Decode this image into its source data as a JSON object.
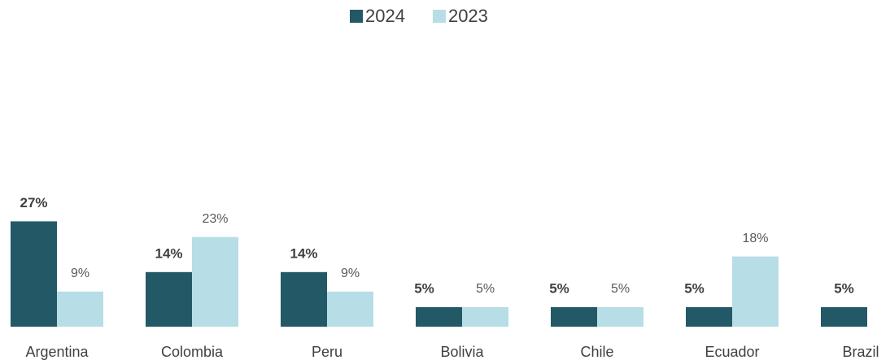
{
  "chart_data": {
    "type": "bar",
    "categories": [
      "Argentina",
      "Colombia",
      "Peru",
      "Bolivia",
      "Chile",
      "Ecuador",
      "Brazil"
    ],
    "series": [
      {
        "name": "2024",
        "color": "#235967",
        "values": [
          27,
          14,
          14,
          5,
          5,
          5,
          5
        ],
        "value_labels": [
          "27%",
          "14%",
          "14%",
          "5%",
          "5%",
          "5%",
          "5%"
        ]
      },
      {
        "name": "2023",
        "color": "#b7dde6",
        "values": [
          9,
          23,
          9,
          5,
          5,
          18,
          null
        ],
        "value_labels": [
          "9%",
          "23%",
          "9%",
          "5%",
          "5%",
          "18%",
          null
        ]
      }
    ],
    "legend": "top"
  }
}
